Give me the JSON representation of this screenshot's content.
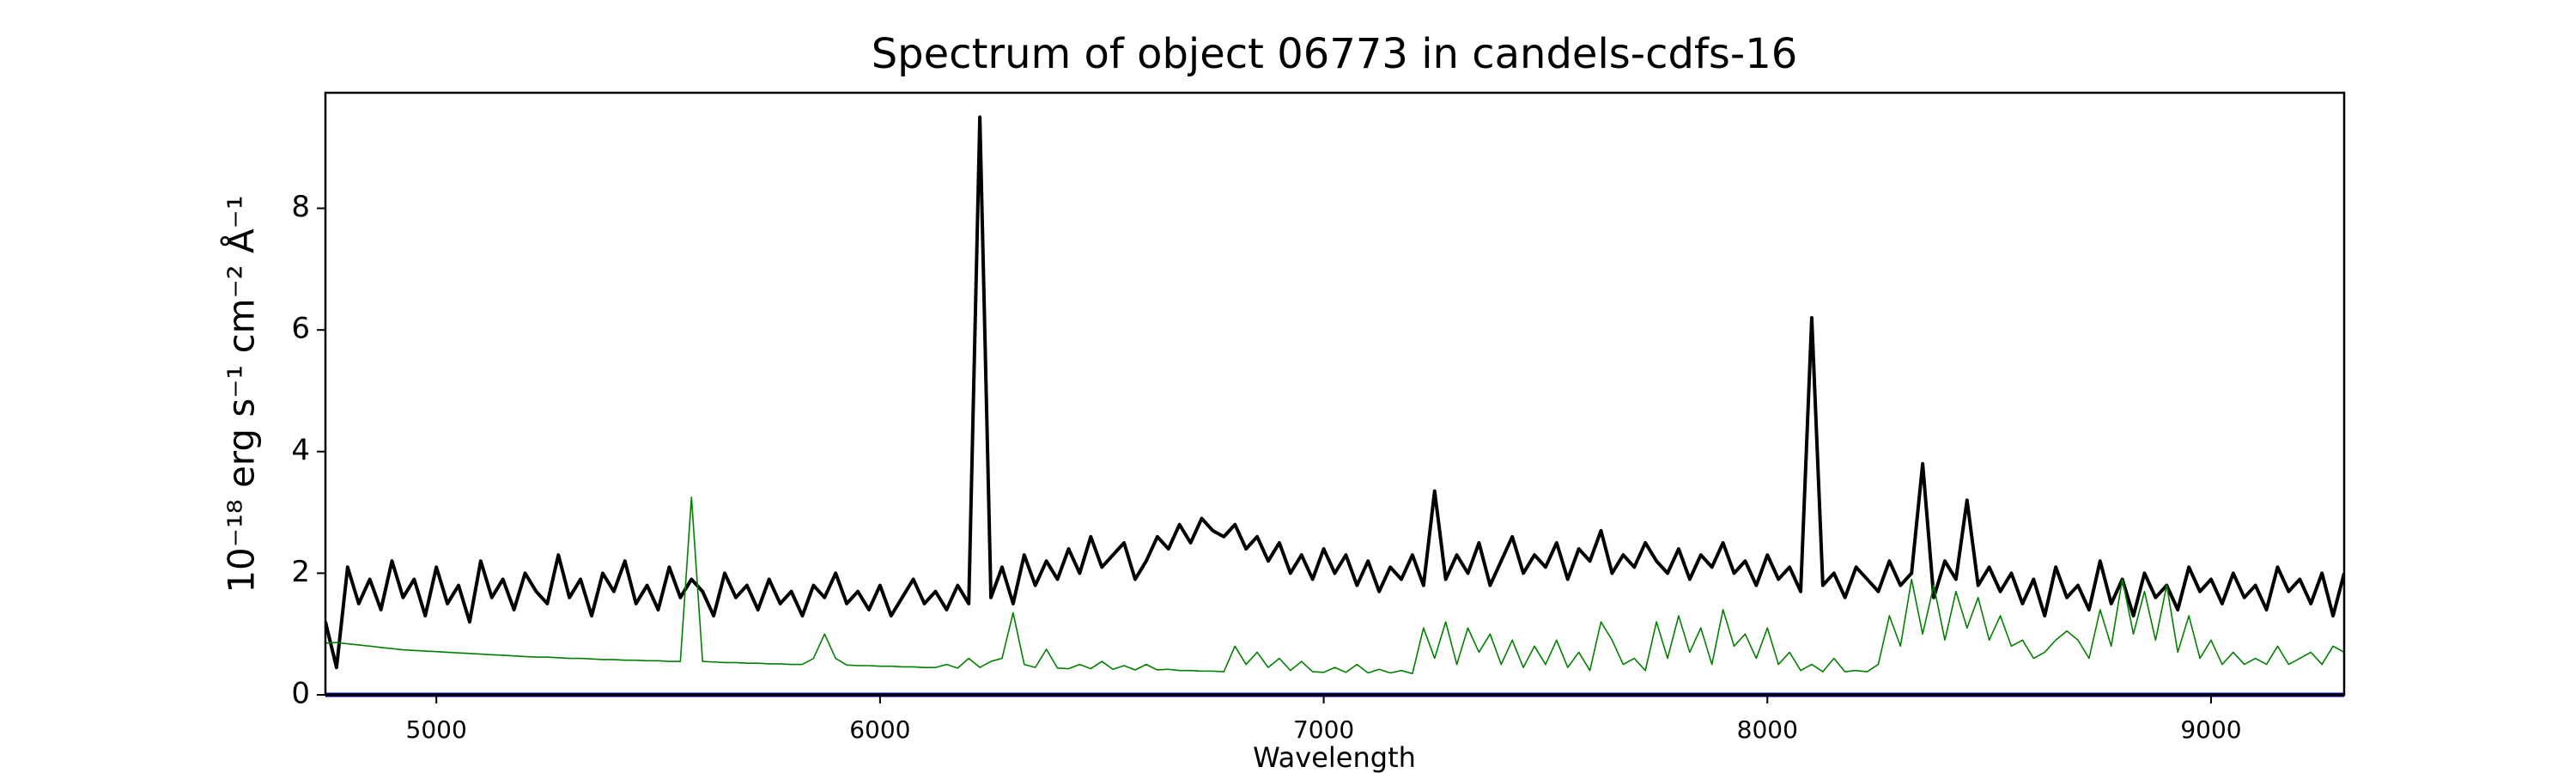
{
  "chart_data": {
    "type": "line",
    "title": "Spectrum of object 06773 in candels-cdfs-16",
    "xlabel": "Wavelength",
    "ylabel": "10⁻¹⁸ erg s⁻¹ cm⁻² Å⁻¹",
    "xlim": [
      4750,
      9300
    ],
    "ylim": [
      0,
      9.9
    ],
    "xticks": [
      5000,
      6000,
      7000,
      8000,
      9000
    ],
    "yticks": [
      0,
      2,
      4,
      6,
      8
    ],
    "zero_line": {
      "value": 0,
      "color": "#000080"
    },
    "x": [
      4750,
      4775,
      4800,
      4825,
      4850,
      4875,
      4900,
      4925,
      4950,
      4975,
      5000,
      5025,
      5050,
      5075,
      5100,
      5125,
      5150,
      5175,
      5200,
      5225,
      5250,
      5275,
      5300,
      5325,
      5350,
      5375,
      5400,
      5425,
      5450,
      5475,
      5500,
      5525,
      5550,
      5575,
      5600,
      5625,
      5650,
      5675,
      5700,
      5725,
      5750,
      5775,
      5800,
      5825,
      5850,
      5875,
      5900,
      5925,
      5950,
      5975,
      6000,
      6025,
      6050,
      6075,
      6100,
      6125,
      6150,
      6175,
      6200,
      6225,
      6250,
      6275,
      6300,
      6325,
      6350,
      6375,
      6400,
      6425,
      6450,
      6475,
      6500,
      6525,
      6550,
      6575,
      6600,
      6625,
      6650,
      6675,
      6700,
      6725,
      6750,
      6775,
      6800,
      6825,
      6850,
      6875,
      6900,
      6925,
      6950,
      6975,
      7000,
      7025,
      7050,
      7075,
      7100,
      7125,
      7150,
      7175,
      7200,
      7225,
      7250,
      7275,
      7300,
      7325,
      7350,
      7375,
      7400,
      7425,
      7450,
      7475,
      7500,
      7525,
      7550,
      7575,
      7600,
      7625,
      7650,
      7675,
      7700,
      7725,
      7750,
      7775,
      7800,
      7825,
      7850,
      7875,
      7900,
      7925,
      7950,
      7975,
      8000,
      8025,
      8050,
      8075,
      8100,
      8125,
      8150,
      8175,
      8200,
      8225,
      8250,
      8275,
      8300,
      8325,
      8350,
      8375,
      8400,
      8425,
      8450,
      8475,
      8500,
      8525,
      8550,
      8575,
      8600,
      8625,
      8650,
      8675,
      8700,
      8725,
      8750,
      8775,
      8800,
      8825,
      8850,
      8875,
      8900,
      8925,
      8950,
      8975,
      9000,
      9025,
      9050,
      9075,
      9100,
      9125,
      9150,
      9175,
      9200,
      9225,
      9250,
      9275,
      9300
    ],
    "series": [
      {
        "color": "#000000",
        "width": 4,
        "values": [
          1.2,
          0.45,
          2.1,
          1.5,
          1.9,
          1.4,
          2.2,
          1.6,
          1.9,
          1.3,
          2.1,
          1.5,
          1.8,
          1.2,
          2.2,
          1.6,
          1.9,
          1.4,
          2.0,
          1.7,
          1.5,
          2.3,
          1.6,
          1.9,
          1.3,
          2.0,
          1.7,
          2.2,
          1.5,
          1.8,
          1.4,
          2.1,
          1.6,
          1.9,
          1.7,
          1.3,
          2.0,
          1.6,
          1.8,
          1.4,
          1.9,
          1.5,
          1.7,
          1.3,
          1.8,
          1.6,
          2.0,
          1.5,
          1.7,
          1.4,
          1.8,
          1.3,
          1.6,
          1.9,
          1.5,
          1.7,
          1.4,
          1.8,
          1.5,
          9.5,
          1.6,
          2.1,
          1.5,
          2.3,
          1.8,
          2.2,
          1.9,
          2.4,
          2.0,
          2.6,
          2.1,
          2.3,
          2.5,
          1.9,
          2.2,
          2.6,
          2.4,
          2.8,
          2.5,
          2.9,
          2.7,
          2.6,
          2.8,
          2.4,
          2.6,
          2.2,
          2.5,
          2.0,
          2.3,
          1.9,
          2.4,
          2.0,
          2.3,
          1.8,
          2.2,
          1.7,
          2.1,
          1.9,
          2.3,
          1.8,
          3.35,
          1.9,
          2.3,
          2.0,
          2.5,
          1.8,
          2.2,
          2.6,
          2.0,
          2.3,
          2.1,
          2.5,
          1.9,
          2.4,
          2.2,
          2.7,
          2.0,
          2.3,
          2.1,
          2.5,
          2.2,
          2.0,
          2.4,
          1.9,
          2.3,
          2.1,
          2.5,
          2.0,
          2.2,
          1.8,
          2.3,
          1.9,
          2.1,
          1.7,
          6.2,
          1.8,
          2.0,
          1.6,
          2.1,
          1.9,
          1.7,
          2.2,
          1.8,
          2.0,
          3.8,
          1.6,
          2.2,
          1.9,
          3.2,
          1.8,
          2.1,
          1.7,
          2.0,
          1.5,
          1.9,
          1.3,
          2.1,
          1.6,
          1.8,
          1.4,
          2.2,
          1.5,
          1.9,
          1.3,
          2.0,
          1.6,
          1.8,
          1.4,
          2.1,
          1.7,
          1.9,
          1.5,
          2.0,
          1.6,
          1.8,
          1.4,
          2.1,
          1.7,
          1.9,
          1.5,
          2.0,
          1.3,
          2.0
        ]
      },
      {
        "color": "#008000",
        "width": 1.6,
        "values": [
          0.85,
          0.86,
          0.84,
          0.82,
          0.8,
          0.78,
          0.76,
          0.74,
          0.73,
          0.72,
          0.71,
          0.7,
          0.69,
          0.68,
          0.67,
          0.66,
          0.65,
          0.64,
          0.63,
          0.62,
          0.62,
          0.61,
          0.6,
          0.6,
          0.59,
          0.58,
          0.58,
          0.57,
          0.57,
          0.56,
          0.56,
          0.55,
          0.55,
          3.25,
          0.55,
          0.54,
          0.53,
          0.53,
          0.52,
          0.52,
          0.51,
          0.51,
          0.5,
          0.5,
          0.6,
          1.0,
          0.6,
          0.49,
          0.48,
          0.48,
          0.47,
          0.47,
          0.46,
          0.46,
          0.45,
          0.45,
          0.5,
          0.44,
          0.6,
          0.45,
          0.55,
          0.6,
          1.35,
          0.5,
          0.45,
          0.75,
          0.44,
          0.43,
          0.5,
          0.43,
          0.55,
          0.42,
          0.48,
          0.41,
          0.5,
          0.41,
          0.42,
          0.4,
          0.4,
          0.39,
          0.39,
          0.38,
          0.8,
          0.5,
          0.7,
          0.45,
          0.6,
          0.4,
          0.55,
          0.38,
          0.37,
          0.45,
          0.37,
          0.5,
          0.36,
          0.42,
          0.36,
          0.4,
          0.35,
          1.1,
          0.6,
          1.2,
          0.5,
          1.1,
          0.7,
          1.0,
          0.5,
          0.9,
          0.45,
          0.8,
          0.5,
          0.9,
          0.45,
          0.7,
          0.4,
          1.2,
          0.9,
          0.5,
          0.6,
          0.4,
          1.2,
          0.6,
          1.3,
          0.7,
          1.1,
          0.5,
          1.4,
          0.8,
          1.0,
          0.6,
          1.1,
          0.5,
          0.7,
          0.4,
          0.5,
          0.38,
          0.6,
          0.38,
          0.4,
          0.38,
          0.5,
          1.3,
          0.8,
          1.9,
          1.0,
          1.8,
          0.9,
          1.7,
          1.1,
          1.6,
          0.9,
          1.3,
          0.8,
          0.9,
          0.6,
          0.7,
          0.9,
          1.05,
          0.9,
          0.6,
          1.4,
          0.8,
          1.9,
          1.0,
          1.7,
          0.9,
          1.8,
          0.7,
          1.3,
          0.6,
          0.9,
          0.5,
          0.7,
          0.5,
          0.6,
          0.5,
          0.8,
          0.5,
          0.6,
          0.7,
          0.5,
          0.8,
          0.7
        ]
      }
    ]
  }
}
